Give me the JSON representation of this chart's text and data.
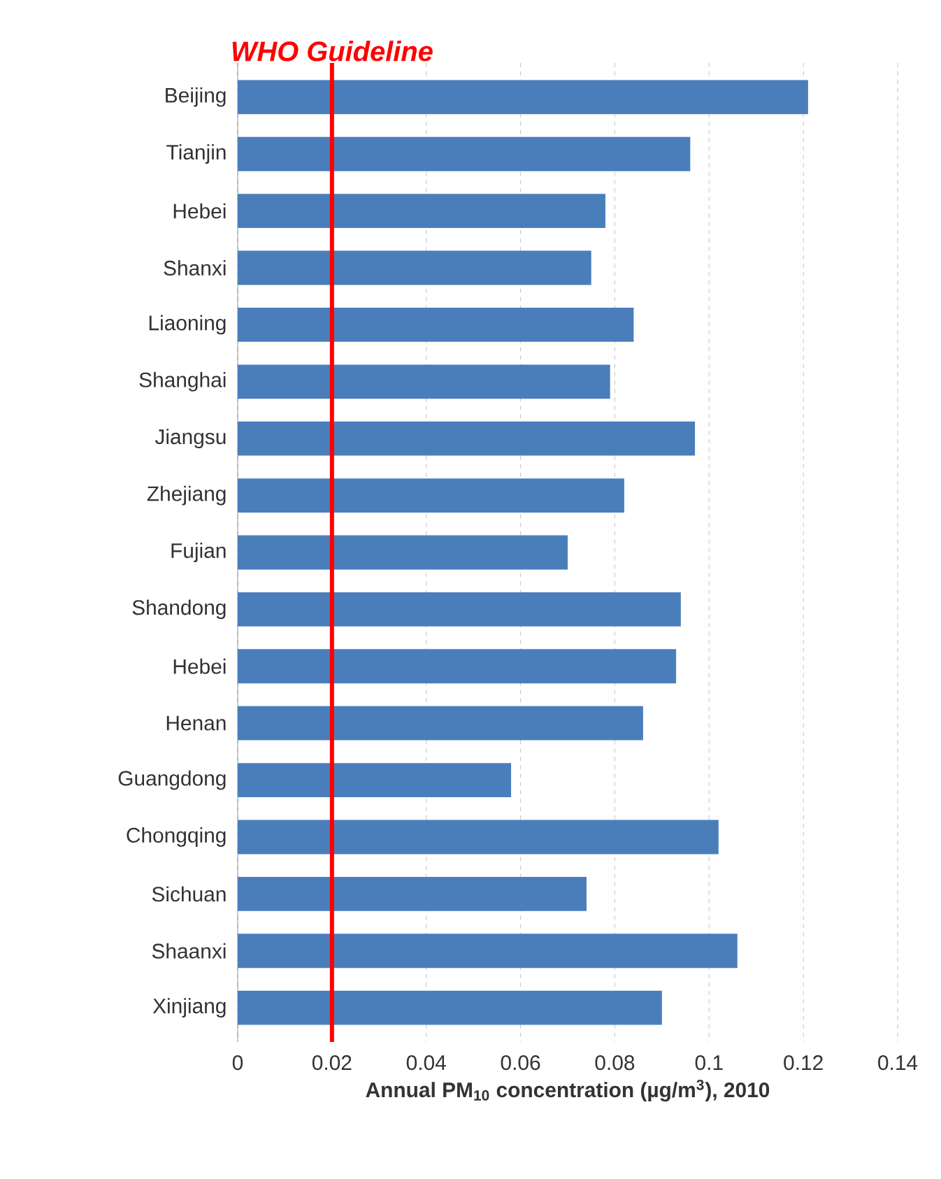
{
  "chart_data": {
    "type": "bar",
    "orientation": "horizontal",
    "xlabel": "Annual PM$_{10}$ concentration (µg/m$^{3}$)**, 2010**",
    "categories": [
      "Beijing",
      "Tianjin",
      "Hebei",
      "Shanxi",
      "Liaoning",
      "Shanghai",
      "Jiangsu",
      "Zhejiang",
      "Fujian",
      "Shandong",
      "Hebei",
      "Henan",
      "Guangdong",
      "Chongqing",
      "Sichuan",
      "Shaanxi",
      "Xinjiang"
    ],
    "values": [
      0.121,
      0.096,
      0.078,
      0.075,
      0.084,
      0.079,
      0.097,
      0.082,
      0.07,
      0.094,
      0.093,
      0.086,
      0.058,
      0.102,
      0.074,
      0.106,
      0.09
    ],
    "color": "#4a7ebb",
    "xlim": [
      0,
      0.14
    ],
    "xticks": [
      0,
      0.02,
      0.04,
      0.06,
      0.08,
      0.1,
      0.12,
      0.14
    ],
    "grid": "x",
    "ref_lines": [
      {
        "axis": "x",
        "value": 0.02,
        "label": "WHO Guideline",
        "color": "#ff0000"
      }
    ]
  }
}
